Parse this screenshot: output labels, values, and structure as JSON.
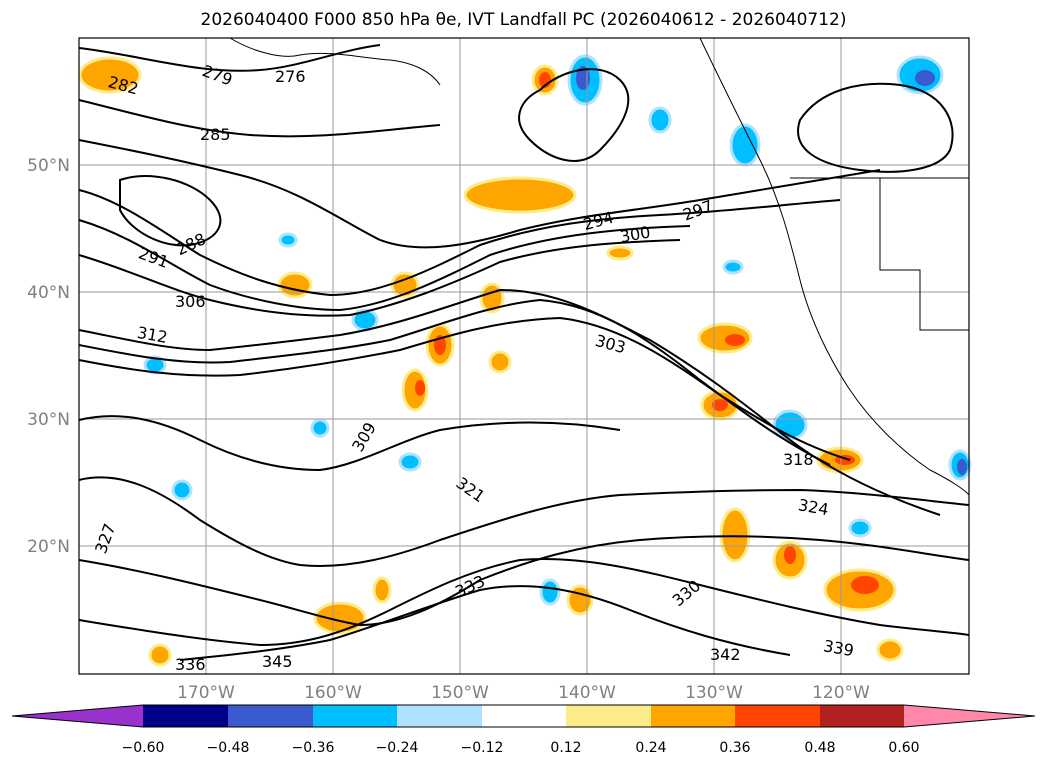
{
  "title": "2026040400 F000 850 hPa θe, IVT Landfall PC (2026040612 - 2026040712)",
  "map": {
    "lat_labels": [
      "50°N",
      "40°N",
      "30°N",
      "20°N"
    ],
    "lon_labels": [
      "170°W",
      "160°W",
      "150°W",
      "140°W",
      "130°W",
      "120°W"
    ],
    "contour_labels": [
      "276",
      "279",
      "282",
      "285",
      "288",
      "291",
      "294",
      "297",
      "300",
      "303",
      "306",
      "309",
      "312",
      "318",
      "321",
      "324",
      "327",
      "330",
      "333",
      "336",
      "339",
      "342",
      "345"
    ]
  },
  "colorbar": {
    "tick_labels": [
      "−0.60",
      "−0.48",
      "−0.36",
      "−0.24",
      "−0.12",
      "0.12",
      "0.24",
      "0.36",
      "0.48",
      "0.60"
    ],
    "colors": [
      "#9932cc",
      "#00008b",
      "#3a5bd0",
      "#00bfff",
      "#b0e2ff",
      "#ffffff",
      "#fdec8a",
      "#ffa500",
      "#ff4500",
      "#b22222",
      "#ff88aa"
    ]
  }
}
